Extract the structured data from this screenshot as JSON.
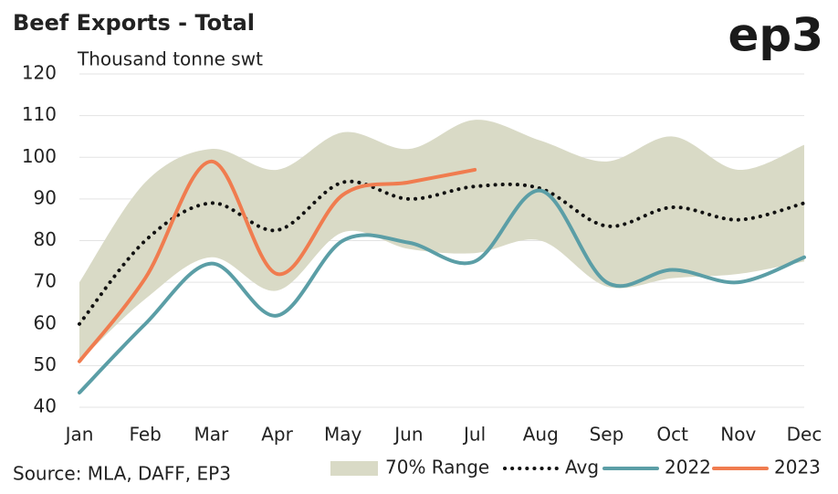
{
  "chart_data": {
    "type": "line",
    "title": "Beef Exports - Total",
    "subtitle": "Thousand tonne swt",
    "logo": "ep3",
    "source": "Source: MLA, DAFF, EP3",
    "categories": [
      "Jan",
      "Feb",
      "Mar",
      "Apr",
      "May",
      "Jun",
      "Jul",
      "Aug",
      "Sep",
      "Oct",
      "Nov",
      "Dec"
    ],
    "series": [
      {
        "name": "70% Range",
        "kind": "band",
        "color": "#d9dac6",
        "values": [
          70,
          94,
          102,
          97,
          106,
          102,
          109,
          104,
          99,
          105,
          97,
          103
        ],
        "lower": [
          51,
          66,
          76,
          68,
          82,
          78,
          77,
          80,
          69,
          71,
          72,
          75
        ]
      },
      {
        "name": "Avg",
        "kind": "dotted",
        "color": "#111111",
        "values": [
          60,
          80,
          89,
          82.5,
          94,
          90,
          93,
          92.5,
          83.5,
          88,
          85,
          89
        ]
      },
      {
        "name": "2022",
        "kind": "line",
        "color": "#5b9ea6",
        "values": [
          43.5,
          60,
          74.5,
          62,
          80,
          79.5,
          75,
          92,
          70,
          73,
          70,
          76
        ]
      },
      {
        "name": "2023",
        "kind": "line",
        "color": "#f07c4f",
        "values": [
          51,
          71,
          99,
          72,
          91,
          94,
          97,
          null,
          null,
          null,
          null,
          null
        ]
      }
    ],
    "ylim": [
      40,
      120
    ],
    "yticks": [
      40,
      50,
      60,
      70,
      80,
      90,
      100,
      110,
      120
    ],
    "grid": true
  }
}
